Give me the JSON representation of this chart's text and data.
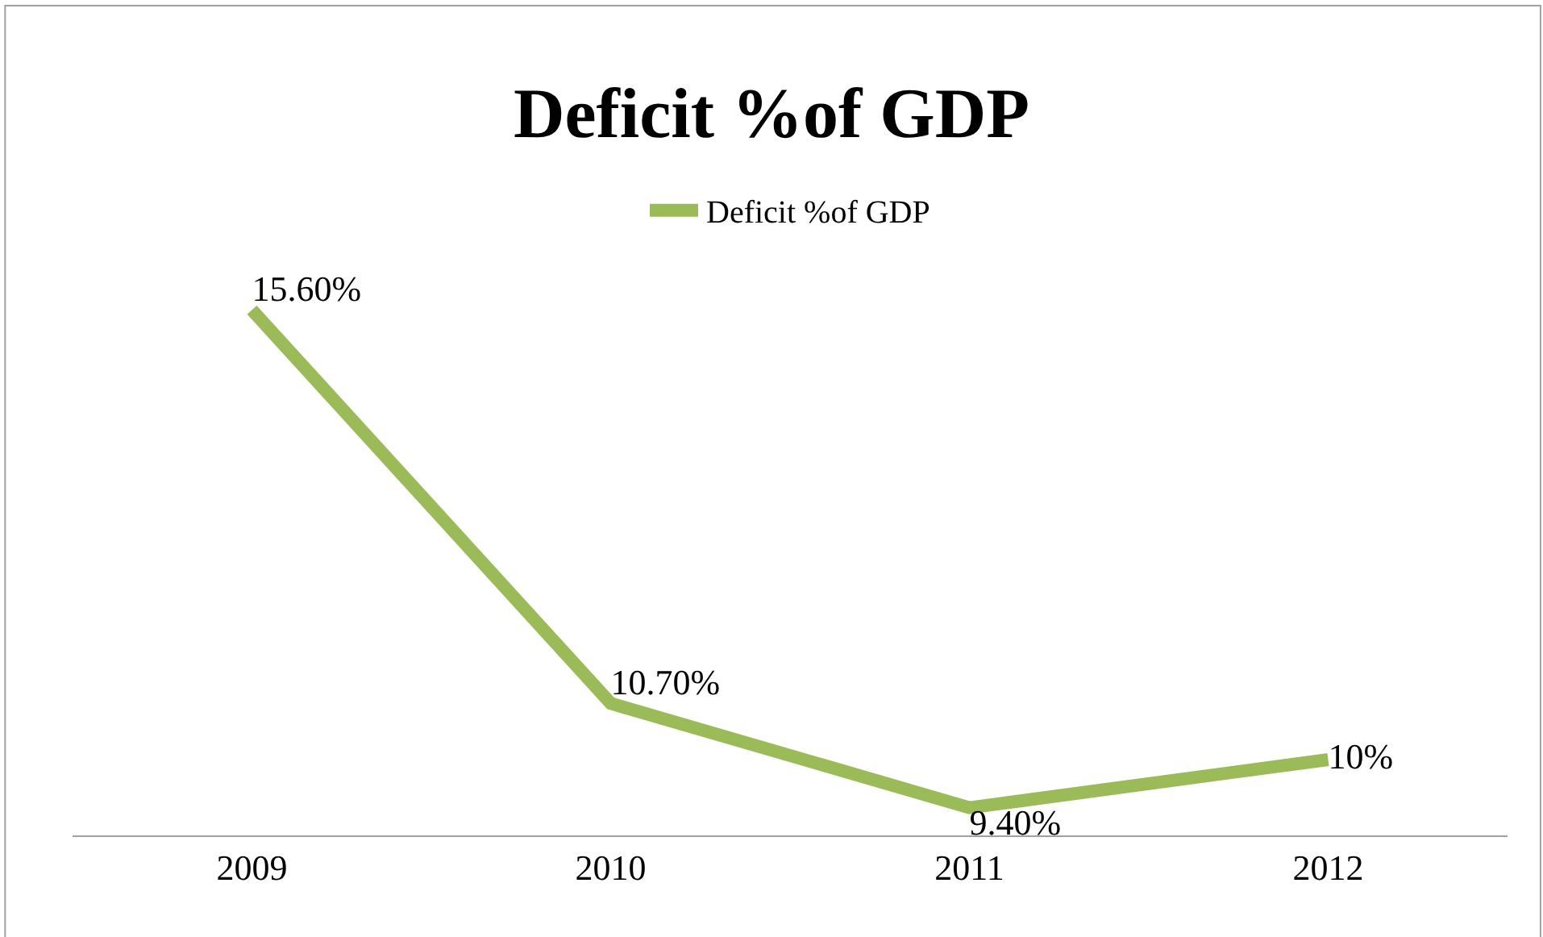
{
  "chart_data": {
    "type": "line",
    "title": "Deficit %of GDP",
    "categories": [
      "2009",
      "2010",
      "2011",
      "2012"
    ],
    "series": [
      {
        "name": "Deficit %of GDP",
        "color": "#9bbb59",
        "values": [
          15.6,
          10.7,
          9.4,
          10
        ],
        "value_labels": [
          "15.60%",
          "10.70%",
          "9.40%",
          "10%"
        ]
      }
    ],
    "legend": "top",
    "marker": "none",
    "line_style": "solid"
  }
}
